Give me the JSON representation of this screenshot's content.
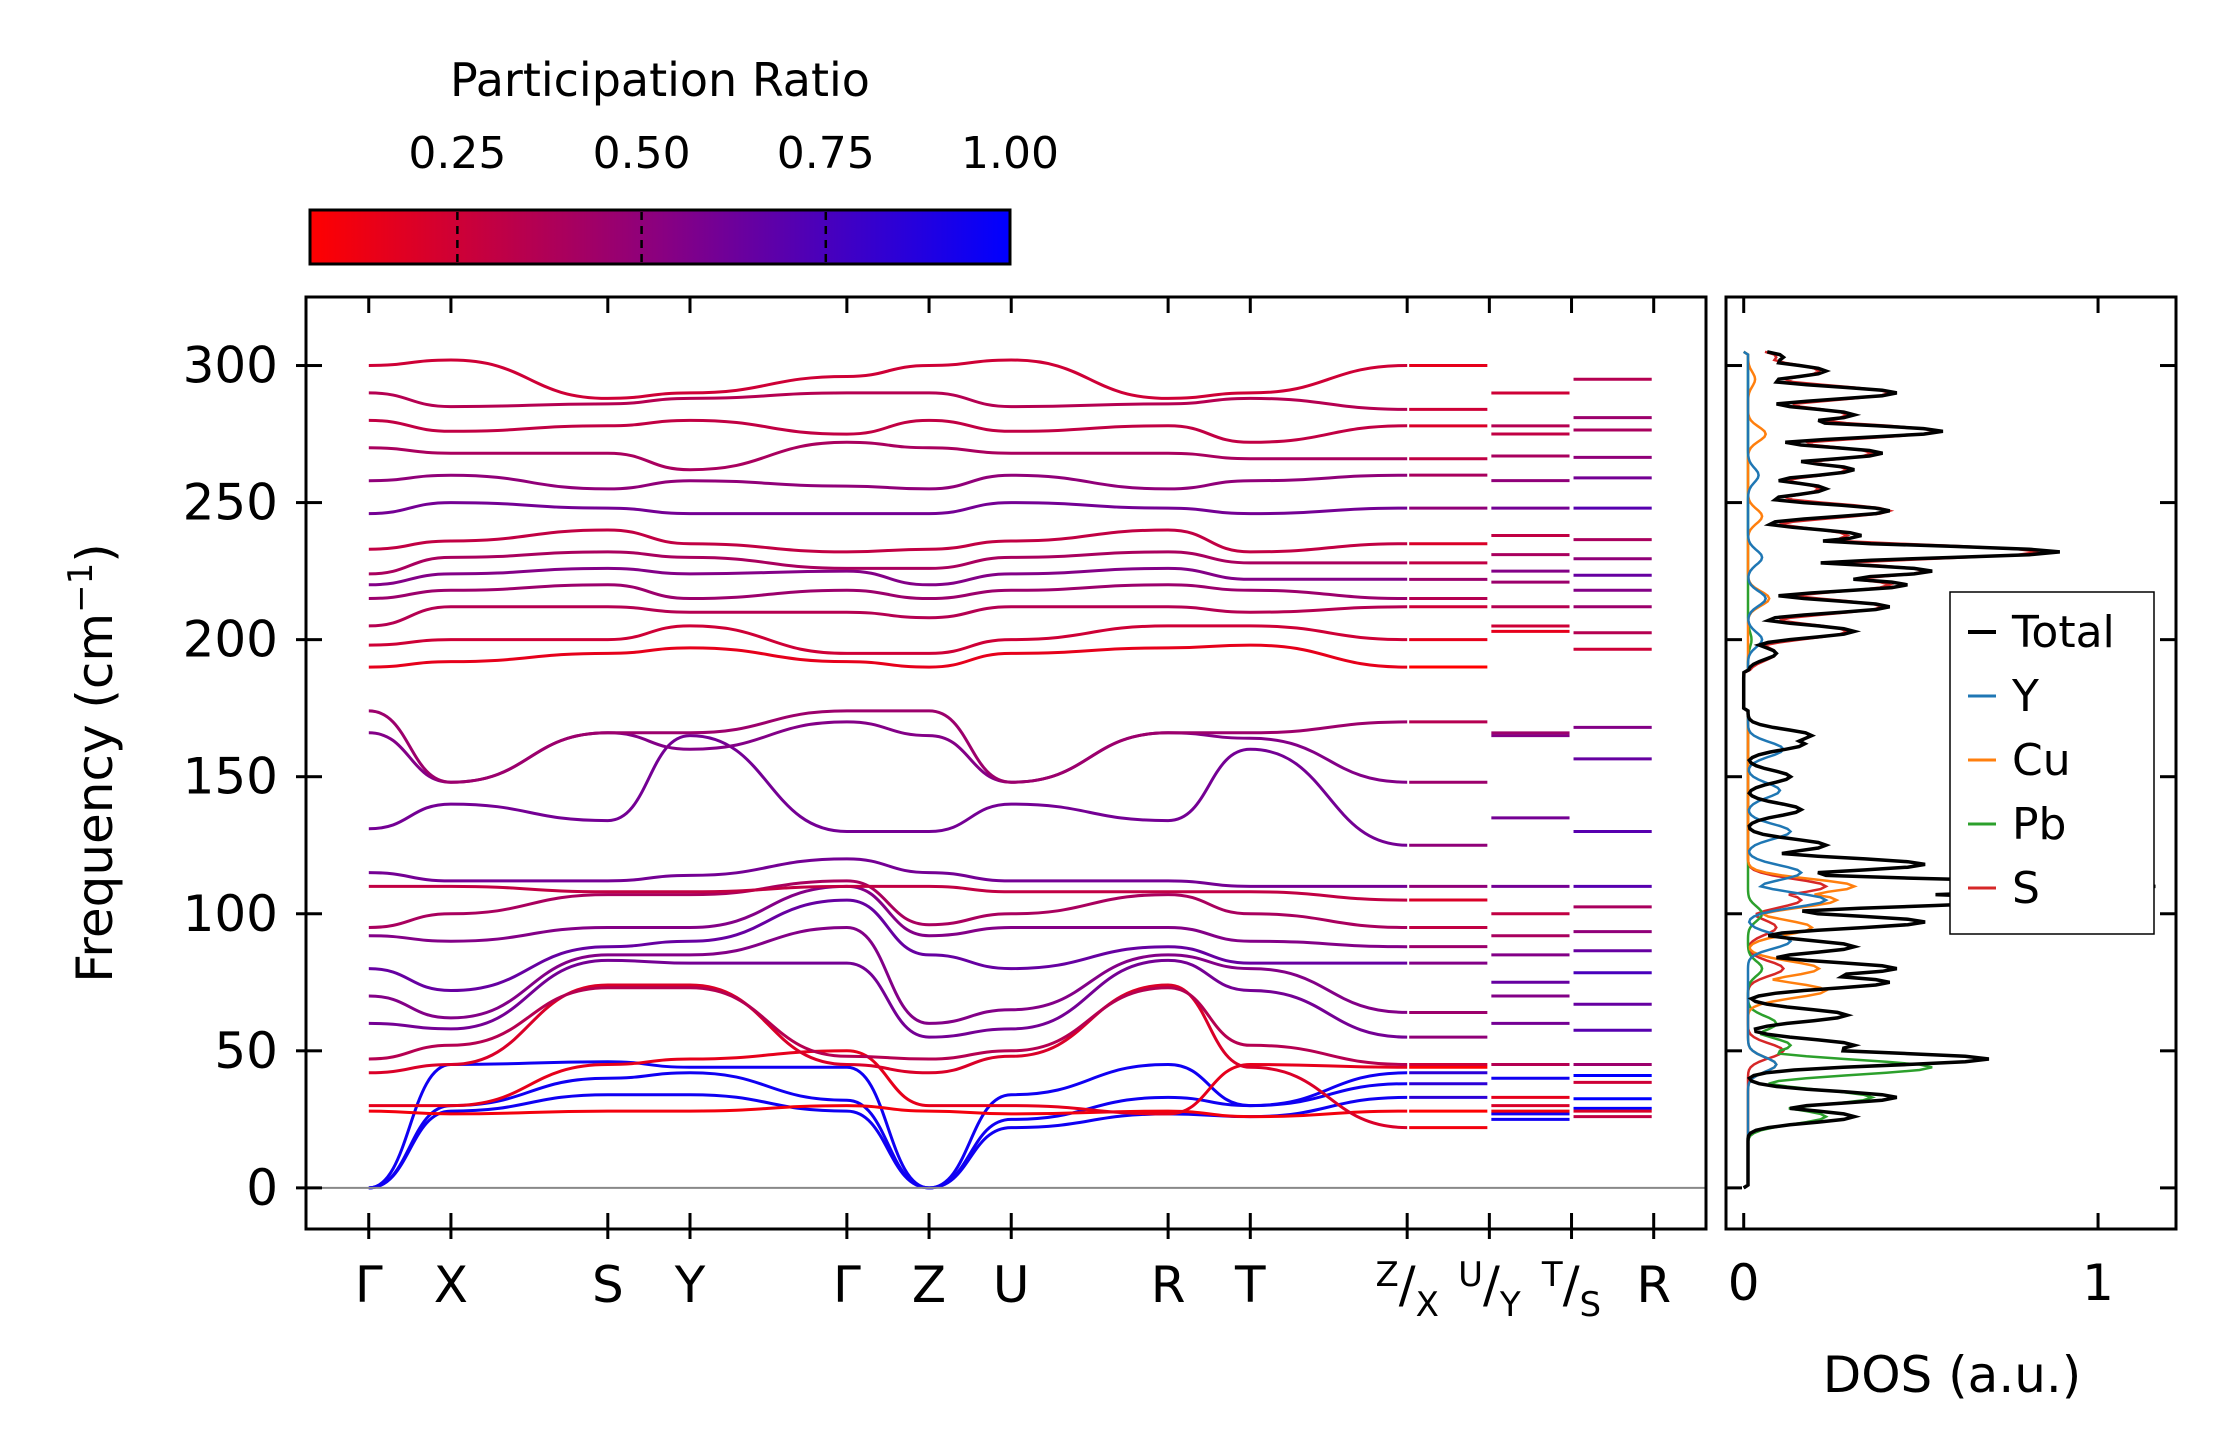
{
  "chart_data": [
    {
      "type": "line",
      "title": "",
      "xlabel": "",
      "ylabel": "Frequency (cm",
      "ylabel_sup": "−1",
      "ylabel_close": ")",
      "ylim": [
        -15,
        325
      ],
      "yticks": [
        0,
        50,
        100,
        150,
        200,
        250,
        300
      ],
      "ytick_labels": [
        "0",
        "50",
        "100",
        "150",
        "200",
        "250",
        "300"
      ],
      "kpath": [
        {
          "label": "Γ",
          "pos": 0.0
        },
        {
          "label": "X",
          "pos": 0.55
        },
        {
          "label": "S",
          "pos": 1.6
        },
        {
          "label": "Y",
          "pos": 2.15
        },
        {
          "label": "Γ",
          "pos": 3.2
        },
        {
          "label": "Z",
          "pos": 3.75
        },
        {
          "label": "U",
          "pos": 4.3
        },
        {
          "label": "R",
          "pos": 5.35
        },
        {
          "label": "T",
          "pos": 5.9
        },
        {
          "label": "Z/X",
          "pos": 6.95
        },
        {
          "label": "U/Y",
          "pos": 7.5
        },
        {
          "label": "T/S",
          "pos": 8.05
        },
        {
          "label": "R",
          "pos": 8.6
        }
      ],
      "xlim": [
        -0.42,
        8.95
      ],
      "zero_line": 0,
      "series_note": "phonon branches colored by participation ratio",
      "branches": [
        {
          "values": [
            0,
            28,
            34,
            34,
            28,
            0,
            22,
            27,
            26,
            33,
            25
          ],
          "pr": 0.95
        },
        {
          "values": [
            0,
            30,
            40,
            42,
            32,
            0,
            25,
            33,
            30,
            38,
            27
          ],
          "pr": 0.95
        },
        {
          "values": [
            0,
            45,
            46,
            44,
            44,
            0,
            34,
            45,
            30,
            42,
            40
          ],
          "pr": 0.95
        },
        {
          "values": [
            28,
            27,
            28,
            28,
            30,
            28,
            27,
            28,
            26,
            28,
            28
          ],
          "pr": 0.1
        },
        {
          "values": [
            30,
            30,
            45,
            47,
            50,
            30,
            30,
            27,
            45,
            44,
            33
          ],
          "pr": 0.15
        },
        {
          "values": [
            42,
            45,
            74,
            74,
            45,
            42,
            48,
            74,
            44,
            22,
            30
          ],
          "pr": 0.2
        },
        {
          "values": [
            47,
            52,
            73,
            73,
            48,
            47,
            50,
            73,
            52,
            45,
            45
          ],
          "pr": 0.35
        },
        {
          "values": [
            60,
            58,
            83,
            82,
            82,
            55,
            58,
            83,
            72,
            55,
            60
          ],
          "pr": 0.6
        },
        {
          "values": [
            70,
            62,
            85,
            85,
            95,
            60,
            65,
            85,
            80,
            64,
            70
          ],
          "pr": 0.55
        },
        {
          "values": [
            80,
            72,
            88,
            90,
            105,
            85,
            80,
            88,
            82,
            82,
            75
          ],
          "pr": 0.65
        },
        {
          "values": [
            92,
            90,
            95,
            95,
            110,
            92,
            95,
            95,
            90,
            88,
            85
          ],
          "pr": 0.55
        },
        {
          "values": [
            95,
            100,
            107,
            107,
            112,
            96,
            100,
            107,
            100,
            95,
            92
          ],
          "pr": 0.4
        },
        {
          "values": [
            110,
            110,
            108,
            108,
            110,
            110,
            108,
            108,
            108,
            105,
            100
          ],
          "pr": 0.3
        },
        {
          "values": [
            115,
            112,
            112,
            114,
            120,
            115,
            112,
            112,
            110,
            110,
            110
          ],
          "pr": 0.6
        },
        {
          "values": [
            131,
            140,
            134,
            165,
            130,
            130,
            140,
            134,
            160,
            125,
            135
          ],
          "pr": 0.6
        },
        {
          "values": [
            166,
            148,
            166,
            160,
            170,
            165,
            148,
            166,
            164,
            148,
            165
          ],
          "pr": 0.55
        },
        {
          "values": [
            174,
            148,
            166,
            166,
            174,
            174,
            148,
            166,
            166,
            170,
            166
          ],
          "pr": 0.45
        },
        {
          "values": [
            190,
            192,
            195,
            197,
            192,
            190,
            195,
            197,
            198,
            190,
            203
          ],
          "pr": 0.15
        },
        {
          "values": [
            198,
            200,
            200,
            205,
            195,
            195,
            200,
            205,
            205,
            200,
            205
          ],
          "pr": 0.25
        },
        {
          "values": [
            205,
            212,
            212,
            210,
            210,
            208,
            212,
            212,
            210,
            212,
            212
          ],
          "pr": 0.35
        },
        {
          "values": [
            215,
            218,
            220,
            215,
            218,
            215,
            218,
            220,
            218,
            215,
            221
          ],
          "pr": 0.45
        },
        {
          "values": [
            220,
            224,
            226,
            224,
            225,
            220,
            224,
            226,
            222,
            222,
            225
          ],
          "pr": 0.55
        },
        {
          "values": [
            224,
            230,
            232,
            230,
            226,
            226,
            230,
            232,
            228,
            228,
            231
          ],
          "pr": 0.4
        },
        {
          "values": [
            233,
            236,
            240,
            235,
            232,
            233,
            236,
            240,
            232,
            235,
            238
          ],
          "pr": 0.3
        },
        {
          "values": [
            246,
            250,
            248,
            246,
            246,
            246,
            250,
            248,
            246,
            248,
            248
          ],
          "pr": 0.6
        },
        {
          "values": [
            258,
            260,
            255,
            258,
            256,
            255,
            260,
            255,
            258,
            260,
            258
          ],
          "pr": 0.5
        },
        {
          "values": [
            270,
            268,
            268,
            262,
            272,
            270,
            268,
            268,
            266,
            266,
            267
          ],
          "pr": 0.4
        },
        {
          "values": [
            280,
            276,
            278,
            280,
            275,
            280,
            276,
            278,
            272,
            278,
            275
          ],
          "pr": 0.3
        },
        {
          "values": [
            290,
            285,
            286,
            288,
            290,
            290,
            285,
            286,
            288,
            284,
            278
          ],
          "pr": 0.35
        },
        {
          "values": [
            300,
            302,
            288,
            290,
            296,
            300,
            302,
            288,
            290,
            300,
            290
          ],
          "pr": 0.25
        }
      ],
      "colorbar": {
        "label": "Participation Ratio",
        "ticks": [
          0.25,
          0.5,
          0.75,
          1.0
        ],
        "tick_labels": [
          "0.25",
          "0.50",
          "0.75",
          "1.00"
        ],
        "range": [
          0.05,
          1.0
        ],
        "color_low": "#ff0000",
        "color_mid": "#8a0080",
        "color_high": "#0000ff"
      }
    },
    {
      "type": "line",
      "xlabel": "DOS (a.u.)",
      "xlim": [
        -0.05,
        1.22
      ],
      "xticks": [
        0,
        1
      ],
      "xtick_labels": [
        "0",
        "1"
      ],
      "ylim": [
        -15,
        325
      ],
      "legend_position": "center-right",
      "series": [
        {
          "name": "Total",
          "color": "#000000",
          "peaks": [
            [
              26,
              0.3
            ],
            [
              33,
              0.42
            ],
            [
              47,
              0.68
            ],
            [
              52,
              0.3
            ],
            [
              63,
              0.28
            ],
            [
              75,
              0.4
            ],
            [
              80,
              0.42
            ],
            [
              88,
              0.3
            ],
            [
              97,
              0.5
            ],
            [
              105,
              0.8
            ],
            [
              110,
              1.15
            ],
            [
              118,
              0.5
            ],
            [
              125,
              0.22
            ],
            [
              138,
              0.15
            ],
            [
              150,
              0.12
            ],
            [
              162,
              0.16
            ],
            [
              165,
              0.18
            ],
            [
              195,
              0.08
            ],
            [
              203,
              0.3
            ],
            [
              212,
              0.4
            ],
            [
              220,
              0.45
            ],
            [
              225,
              0.52
            ],
            [
              232,
              0.88
            ],
            [
              238,
              0.32
            ],
            [
              247,
              0.4
            ],
            [
              255,
              0.22
            ],
            [
              262,
              0.3
            ],
            [
              268,
              0.38
            ],
            [
              276,
              0.55
            ],
            [
              282,
              0.3
            ],
            [
              290,
              0.42
            ],
            [
              298,
              0.22
            ],
            [
              303,
              0.1
            ]
          ]
        },
        {
          "name": "Y",
          "color": "#1f77b4",
          "peaks": [
            [
              45,
              0.08
            ],
            [
              90,
              0.12
            ],
            [
              105,
              0.22
            ],
            [
              115,
              0.15
            ],
            [
              130,
              0.12
            ],
            [
              145,
              0.09
            ],
            [
              160,
              0.1
            ],
            [
              200,
              0.04
            ],
            [
              215,
              0.05
            ],
            [
              230,
              0.04
            ],
            [
              260,
              0.03
            ]
          ]
        },
        {
          "name": "Cu",
          "color": "#ff7f0e",
          "peaks": [
            [
              45,
              0.08
            ],
            [
              72,
              0.22
            ],
            [
              80,
              0.2
            ],
            [
              95,
              0.18
            ],
            [
              105,
              0.25
            ],
            [
              110,
              0.3
            ],
            [
              215,
              0.06
            ],
            [
              245,
              0.04
            ],
            [
              275,
              0.05
            ],
            [
              295,
              0.02
            ]
          ]
        },
        {
          "name": "Pb",
          "color": "#2ca02c",
          "peaks": [
            [
              26,
              0.22
            ],
            [
              33,
              0.35
            ],
            [
              44,
              0.52
            ],
            [
              52,
              0.12
            ],
            [
              60,
              0.08
            ],
            [
              80,
              0.04
            ],
            [
              100,
              0.04
            ],
            [
              200,
              0.01
            ]
          ]
        },
        {
          "name": "S",
          "color": "#d62728",
          "peaks": [
            [
              50,
              0.1
            ],
            [
              80,
              0.1
            ],
            [
              95,
              0.08
            ],
            [
              105,
              0.15
            ],
            [
              110,
              0.22
            ],
            [
              195,
              0.08
            ],
            [
              203,
              0.28
            ],
            [
              212,
              0.38
            ],
            [
              220,
              0.4
            ],
            [
              225,
              0.5
            ],
            [
              232,
              0.82
            ],
            [
              238,
              0.28
            ],
            [
              247,
              0.4
            ],
            [
              255,
              0.2
            ],
            [
              262,
              0.28
            ],
            [
              268,
              0.35
            ],
            [
              276,
              0.53
            ],
            [
              282,
              0.28
            ],
            [
              290,
              0.4
            ],
            [
              298,
              0.2
            ],
            [
              303,
              0.08
            ]
          ]
        }
      ]
    }
  ]
}
